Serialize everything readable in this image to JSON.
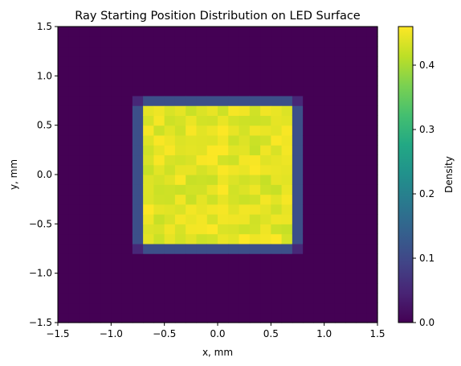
{
  "chart_data": {
    "type": "heatmap",
    "title": "Ray Starting Position Distribution on LED Surface",
    "xlabel": "x, mm",
    "ylabel": "y, mm",
    "xlim": [
      -1.5,
      1.5
    ],
    "ylim": [
      -1.5,
      1.5
    ],
    "x_ticks": [
      -1.5,
      -1.0,
      -0.5,
      0.0,
      0.5,
      1.0,
      1.5
    ],
    "x_tick_labels": [
      "−1.5",
      "−1.0",
      "−0.5",
      "0.0",
      "0.5",
      "1.0",
      "1.5"
    ],
    "y_ticks": [
      -1.5,
      -1.0,
      -0.5,
      0.0,
      0.5,
      1.0,
      1.5
    ],
    "y_tick_labels": [
      "−1.5",
      "−1.0",
      "−0.5",
      "0.0",
      "0.5",
      "1.0",
      "1.5"
    ],
    "grid": false,
    "colormap": "viridis",
    "colorbar": {
      "label": "Density",
      "range": [
        0.0,
        0.46
      ],
      "ticks": [
        0.0,
        0.1,
        0.2,
        0.3,
        0.4
      ],
      "tick_labels": [
        "0.0",
        "0.1",
        "0.2",
        "0.3",
        "0.4"
      ]
    },
    "bins": {
      "nx": 30,
      "ny": 30,
      "x_range": [
        -1.5,
        1.5
      ],
      "y_range": [
        -1.5,
        1.5
      ]
    },
    "regions": [
      {
        "description": "outside LED surface",
        "x_range": [
          -1.5,
          1.5
        ],
        "y_range": [
          -1.5,
          1.5
        ],
        "density": 0.0
      },
      {
        "description": "LED edge bins",
        "x_range": [
          -0.8,
          0.8
        ],
        "y_range": [
          -0.8,
          0.8
        ],
        "density": 0.11
      },
      {
        "description": "LED corner bins",
        "points": [
          [
            -0.75,
            0.75
          ],
          [
            0.75,
            0.75
          ],
          [
            -0.75,
            -0.75
          ],
          [
            0.75,
            -0.75
          ]
        ],
        "density": 0.05
      },
      {
        "description": "LED interior",
        "x_range": [
          -0.7,
          0.7
        ],
        "y_range": [
          -0.7,
          0.7
        ],
        "density_range": [
          0.42,
          0.46
        ]
      }
    ]
  }
}
